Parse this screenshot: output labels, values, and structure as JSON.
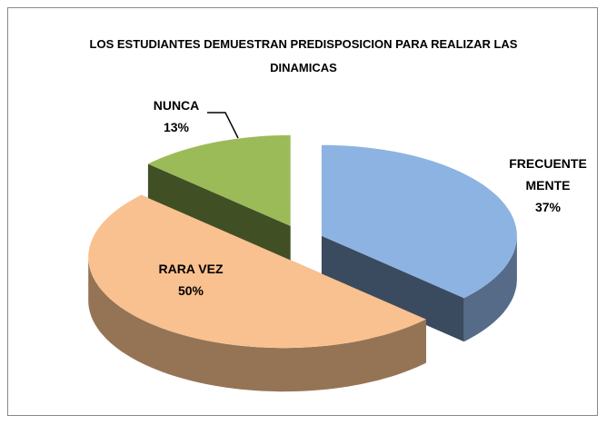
{
  "chart_data": {
    "type": "pie3d",
    "title": "LOS ESTUDIANTES DEMUESTRAN PREDISPOSICION PARA REALIZAR LAS DINAMICAS",
    "categories": [
      "FRECUENTE MENTE",
      "RARA VEZ",
      "NUNCA"
    ],
    "values": [
      37,
      50,
      13
    ],
    "value_labels": [
      "37%",
      "50%",
      "13%"
    ],
    "colors": [
      "#8db3e2",
      "#f9c18f",
      "#9bbb59"
    ]
  }
}
